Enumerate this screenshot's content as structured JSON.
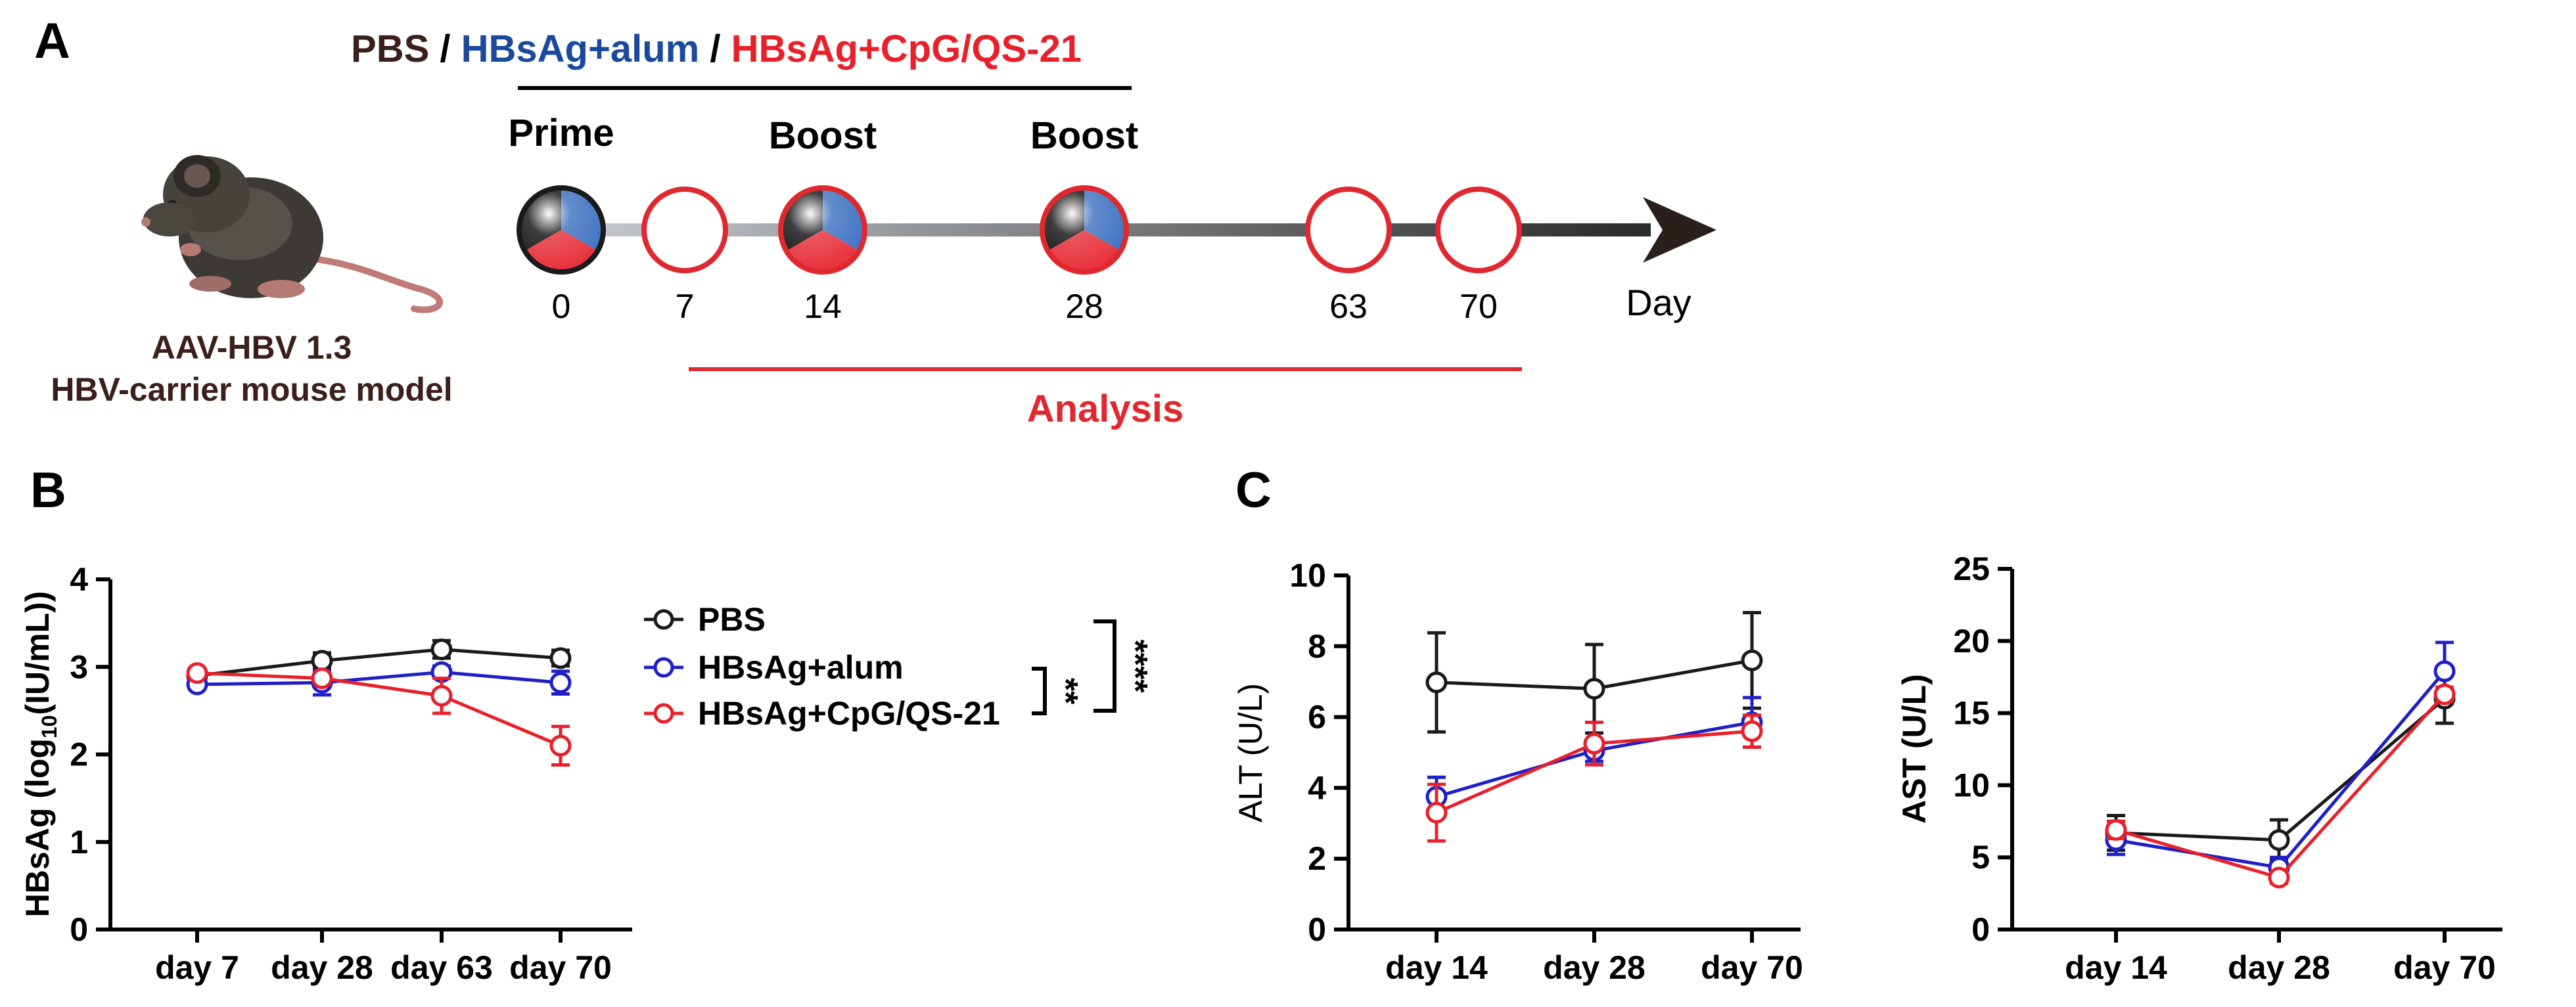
{
  "colors": {
    "pbs": "#1a1a1a",
    "alum": "#1f1fc8",
    "cpg": "#e8202a",
    "title_alum": "#1a4a9c",
    "title_cpg": "#e8202a",
    "title_pbs": "#3a1f1a",
    "analysis": "#e0282f"
  },
  "panel_a": {
    "label": "A",
    "title_pbs": "PBS",
    "title_sep1": " / ",
    "title_alum": "HBsAg+alum",
    "title_sep2": " / ",
    "title_cpg": "HBsAg+CpG/QS-21",
    "prime": "Prime",
    "boost1": "Boost",
    "boost2": "Boost",
    "days": [
      "0",
      "7",
      "14",
      "28",
      "63",
      "70"
    ],
    "day_axis": "Day",
    "analysis": "Analysis",
    "model_line1": "AAV-HBV 1.3",
    "model_line2": "HBV-carrier mouse model"
  },
  "panel_b_label": "B",
  "panel_c_label": "C",
  "legend": {
    "pbs": "PBS",
    "alum": "HBsAg+alum",
    "cpg": "HBsAg+CpG/QS-21",
    "sig_alum_cpg": "**",
    "sig_pbs_cpg": "****"
  },
  "chart_data": [
    {
      "id": "hbsag",
      "type": "line",
      "title": "",
      "xlabel": "",
      "ylabel_main": "HBsAg (log",
      "ylabel_sub": "10",
      "ylabel_tail": "(IU/mL))",
      "categories": [
        "day 7",
        "day 28",
        "day 63",
        "day 70"
      ],
      "ylim": [
        0,
        4
      ],
      "yticks": [
        "0",
        "1",
        "2",
        "3",
        "4"
      ],
      "series": [
        {
          "name": "PBS",
          "values": [
            2.9,
            3.07,
            3.2,
            3.1
          ],
          "errors": [
            0.05,
            0.09,
            0.1,
            0.09
          ]
        },
        {
          "name": "HBsAg+alum",
          "values": [
            2.8,
            2.82,
            2.94,
            2.82
          ],
          "errors": [
            0.05,
            0.14,
            0.07,
            0.13
          ]
        },
        {
          "name": "HBsAg+CpG/QS-21",
          "values": [
            2.93,
            2.87,
            2.67,
            2.1
          ],
          "errors": [
            0.04,
            0.04,
            0.2,
            0.22
          ]
        }
      ]
    },
    {
      "id": "alt",
      "type": "line",
      "title": "",
      "xlabel": "",
      "ylabel": "ALT (U/L)",
      "categories": [
        "day 14",
        "day 28",
        "day 70"
      ],
      "ylim": [
        0,
        10
      ],
      "yticks": [
        "0",
        "2",
        "4",
        "6",
        "8",
        "10"
      ],
      "series": [
        {
          "name": "PBS",
          "values": [
            6.98,
            6.8,
            7.6
          ],
          "errors": [
            1.4,
            1.25,
            1.35
          ]
        },
        {
          "name": "HBsAg+alum",
          "values": [
            3.75,
            5.05,
            5.85
          ],
          "errors": [
            0.55,
            0.3,
            0.7
          ]
        },
        {
          "name": "HBsAg+CpG/QS-21",
          "values": [
            3.3,
            5.25,
            5.6
          ],
          "errors": [
            0.8,
            0.6,
            0.45
          ]
        }
      ]
    },
    {
      "id": "ast",
      "type": "line",
      "title": "",
      "xlabel": "",
      "ylabel": "AST (U/L)",
      "categories": [
        "day 14",
        "day 28",
        "day 70"
      ],
      "ylim": [
        0,
        25
      ],
      "yticks": [
        "0",
        "5",
        "10",
        "15",
        "20",
        "25"
      ],
      "series": [
        {
          "name": "PBS",
          "values": [
            6.7,
            6.2,
            16.0
          ],
          "errors": [
            1.2,
            1.4,
            1.7
          ]
        },
        {
          "name": "HBsAg+alum",
          "values": [
            6.2,
            4.3,
            17.9
          ],
          "errors": [
            1.0,
            0.7,
            2.0
          ]
        },
        {
          "name": "HBsAg+CpG/QS-21",
          "values": [
            6.9,
            3.6,
            16.3
          ],
          "errors": [
            0.6,
            0.4,
            0.5
          ]
        }
      ]
    }
  ]
}
